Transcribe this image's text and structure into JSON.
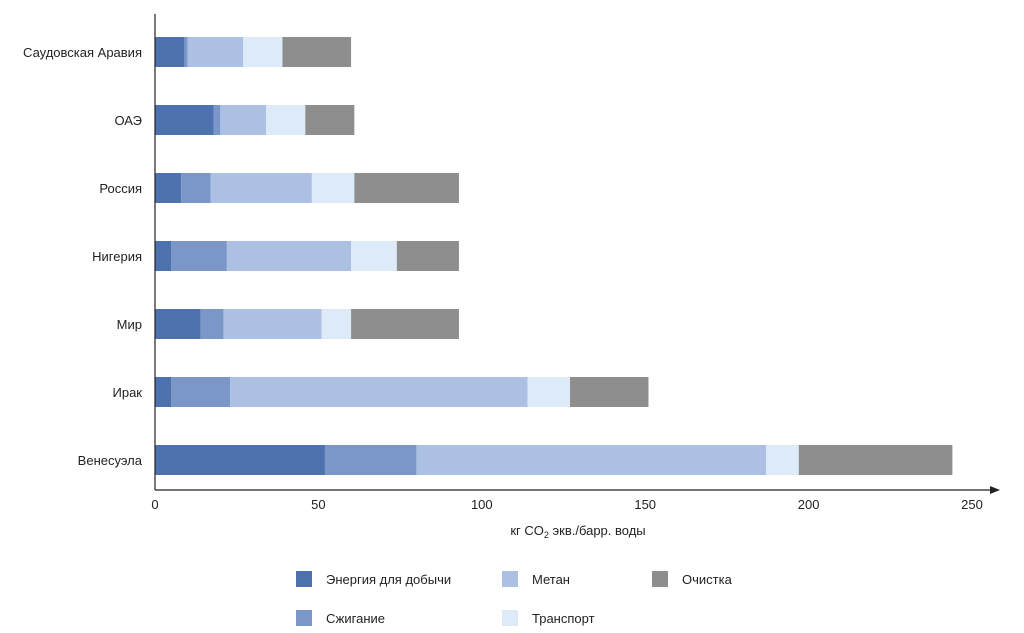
{
  "chart_data": {
    "type": "bar",
    "orientation": "horizontal",
    "stacked": true,
    "title": "",
    "xlabel": {
      "before": "кг CO",
      "sub": "2",
      "after": " экв./барр. воды"
    },
    "ylabel": "",
    "xlim": [
      0,
      250
    ],
    "xticks": [
      0,
      50,
      100,
      150,
      200,
      250
    ],
    "grid": false,
    "legend_position": "bottom",
    "categories": [
      "Саудовская Аравия",
      "ОАЭ",
      "Россия",
      "Нигерия",
      "Мир",
      "Ирак",
      "Венесуэла"
    ],
    "series": [
      {
        "name": "Энергия для добычи",
        "color": "#4e72ad",
        "values": [
          9,
          18,
          8,
          5,
          14,
          5,
          52
        ]
      },
      {
        "name": "Сжигание",
        "color": "#7b97ca",
        "values": [
          1,
          2,
          9,
          17,
          7,
          18,
          28
        ]
      },
      {
        "name": "Метан",
        "color": "#abc0e2",
        "values": [
          17,
          14,
          31,
          38,
          30,
          91,
          107
        ]
      },
      {
        "name": "Транспорт",
        "color": "#ddeaf8",
        "values": [
          12,
          12,
          13,
          14,
          9,
          13,
          10
        ]
      },
      {
        "name": "Очистка",
        "color": "#8e8e8e",
        "values": [
          21,
          15,
          32,
          19,
          33,
          24,
          47
        ]
      }
    ]
  },
  "legend": [
    {
      "label": "Энергия для добычи",
      "color": "#4e72ad"
    },
    {
      "label": "Метан",
      "color": "#abc0e2"
    },
    {
      "label": "Очистка",
      "color": "#8e8e8e"
    },
    {
      "label": "Сжигание",
      "color": "#7b97ca"
    },
    {
      "label": "Транспорт",
      "color": "#ddeaf8"
    }
  ]
}
